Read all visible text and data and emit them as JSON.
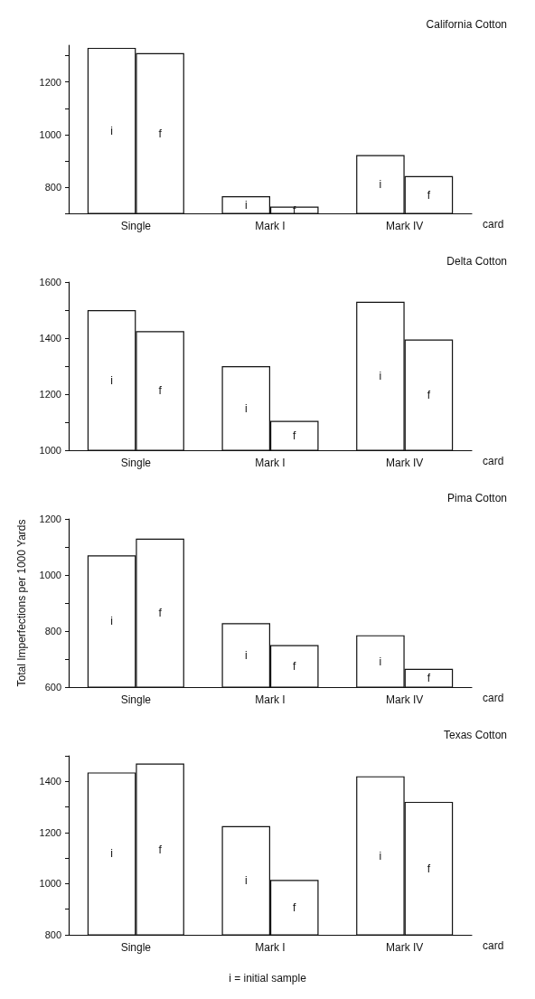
{
  "chart_data": [
    {
      "type": "bar",
      "title": "California Cotton",
      "xlabel": "card",
      "categories": [
        "Single",
        "Mark I",
        "Mark IV"
      ],
      "series": [
        {
          "name": "i",
          "color": "#ffffff",
          "values": [
            1330,
            765,
            922
          ]
        },
        {
          "name": "f",
          "color": "#ffffff",
          "values": [
            1310,
            726,
            842
          ]
        }
      ],
      "ylim": [
        700,
        1340
      ],
      "yticks": [
        {
          "value": 700,
          "label": null
        },
        800,
        {
          "value": 900,
          "label": null
        },
        1000,
        {
          "value": 1100,
          "label": null
        },
        1200,
        {
          "value": 1300,
          "label": null
        }
      ]
    },
    {
      "type": "bar",
      "title": "Delta Cotton",
      "xlabel": "card",
      "categories": [
        "Single",
        "Mark I",
        "Mark IV"
      ],
      "series": [
        {
          "name": "i",
          "color": "#ffffff",
          "values": [
            1500,
            1300,
            1530
          ]
        },
        {
          "name": "f",
          "color": "#ffffff",
          "values": [
            1425,
            1105,
            1395
          ]
        }
      ],
      "ylim": [
        1000,
        1600
      ],
      "yticks": [
        1000,
        {
          "value": 1100,
          "label": null
        },
        1200,
        {
          "value": 1300,
          "label": null
        },
        1400,
        {
          "value": 1500,
          "label": null
        },
        1600
      ]
    },
    {
      "type": "bar",
      "title": "Pima Cotton",
      "xlabel": "card",
      "ylabel": "Total Imperfections per 1000 Yards",
      "categories": [
        "Single",
        "Mark I",
        "Mark IV"
      ],
      "series": [
        {
          "name": "i",
          "color": "#ffffff",
          "values": [
            1070,
            828,
            785
          ]
        },
        {
          "name": "f",
          "color": "#ffffff",
          "values": [
            1130,
            750,
            665
          ]
        }
      ],
      "ylim": [
        600,
        1200
      ],
      "yticks": [
        600,
        {
          "value": 700,
          "label": null
        },
        800,
        {
          "value": 900,
          "label": null
        },
        1000,
        {
          "value": 1100,
          "label": null
        },
        1200
      ]
    },
    {
      "type": "bar",
      "title": "Texas Cotton",
      "xlabel": "card",
      "categories": [
        "Single",
        "Mark I",
        "Mark IV"
      ],
      "series": [
        {
          "name": "i",
          "color": "#ffffff",
          "values": [
            1435,
            1225,
            1420
          ]
        },
        {
          "name": "f",
          "color": "#ffffff",
          "values": [
            1470,
            1015,
            1320
          ]
        }
      ],
      "ylim": [
        800,
        1500
      ],
      "yticks": [
        800,
        {
          "value": 900,
          "label": null
        },
        1000,
        {
          "value": 1100,
          "label": null
        },
        1200,
        {
          "value": 1300,
          "label": null
        },
        1400,
        {
          "value": 1500,
          "label": null
        }
      ],
      "annotations": [
        "i = initial sample"
      ]
    }
  ]
}
